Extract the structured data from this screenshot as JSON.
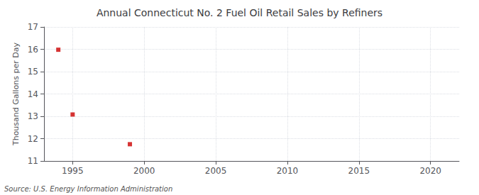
{
  "chart_data": {
    "type": "scatter",
    "title": "Annual Connecticut No. 2 Fuel Oil Retail Sales by Refiners",
    "ylabel": "Thousand Gallons per Day",
    "annotation": "Source: U.S. Energy Information Administration",
    "x": [
      1994,
      1995,
      1999
    ],
    "values": [
      15.98,
      13.08,
      11.75
    ],
    "color": "#cc0000",
    "marker": "square",
    "xlim": [
      1993,
      2022
    ],
    "xticks": [
      1995,
      2000,
      2005,
      2010,
      2015,
      2020
    ],
    "ylim": [
      11,
      17
    ],
    "yticks": [
      11,
      12,
      13,
      14,
      15,
      16,
      17
    ],
    "grid": true
  }
}
